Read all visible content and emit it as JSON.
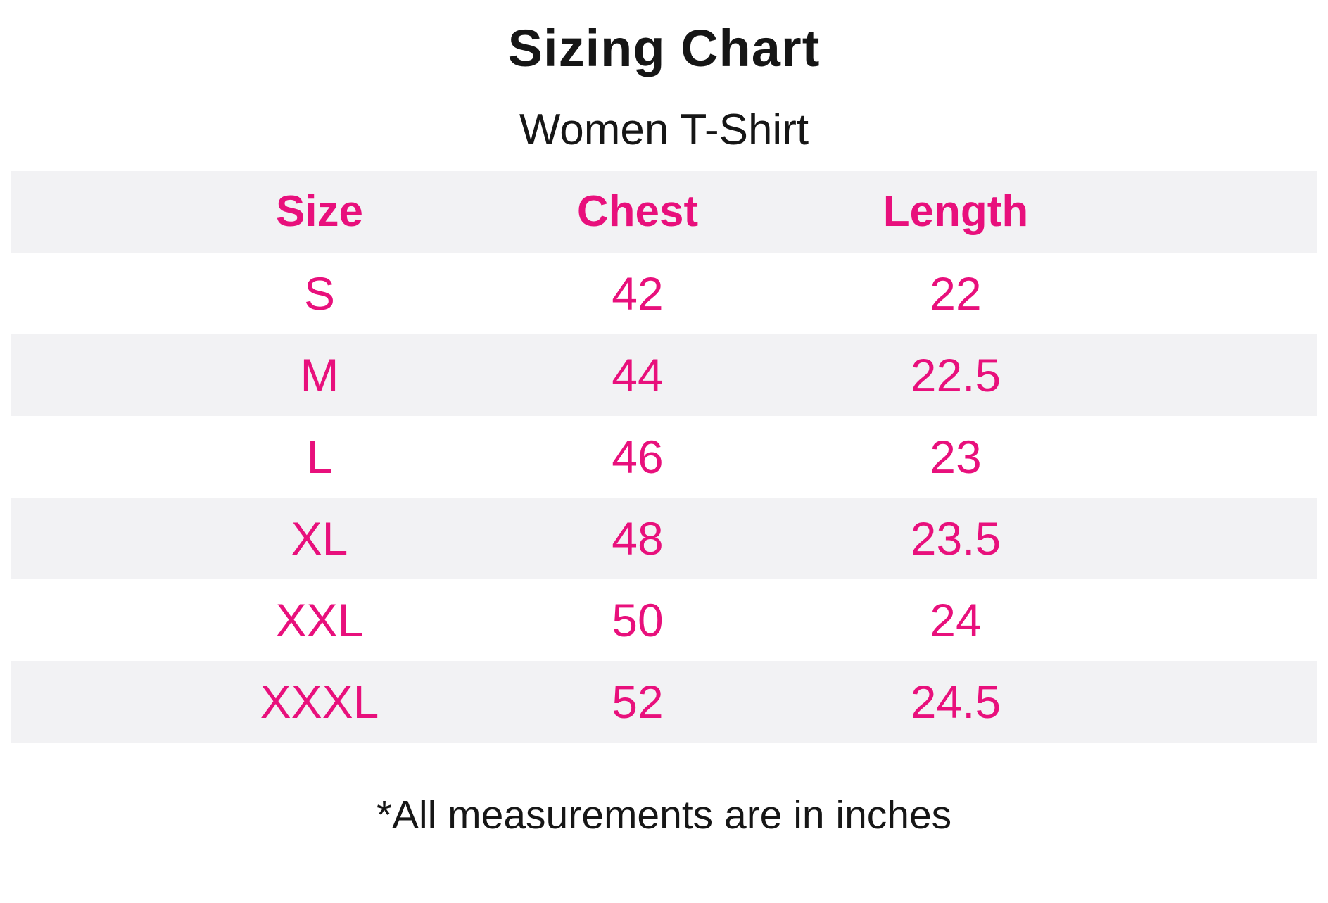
{
  "header": {
    "title": "Sizing Chart",
    "subtitle": "Women T-Shirt"
  },
  "chart_data": {
    "type": "table",
    "title": "Sizing Chart",
    "subtitle": "Women T-Shirt",
    "columns": [
      "Size",
      "Chest",
      "Length"
    ],
    "rows": [
      [
        "S",
        42,
        22
      ],
      [
        "M",
        44,
        22.5
      ],
      [
        "L",
        46,
        23
      ],
      [
        "XL",
        48,
        23.5
      ],
      [
        "XXL",
        50,
        24
      ],
      [
        "XXXL",
        52,
        24.5
      ]
    ],
    "units": "inches",
    "layout": {
      "header_background": "#f2f2f4",
      "stripe_pattern": "header and even data rows gray, others white",
      "grid": "none"
    }
  },
  "footer": {
    "note": "*All measurements are in inches"
  },
  "colors": {
    "accent_pink": "#e8107c",
    "row_stripe": "#f2f2f4",
    "text_black": "#161616",
    "background": "#ffffff"
  }
}
